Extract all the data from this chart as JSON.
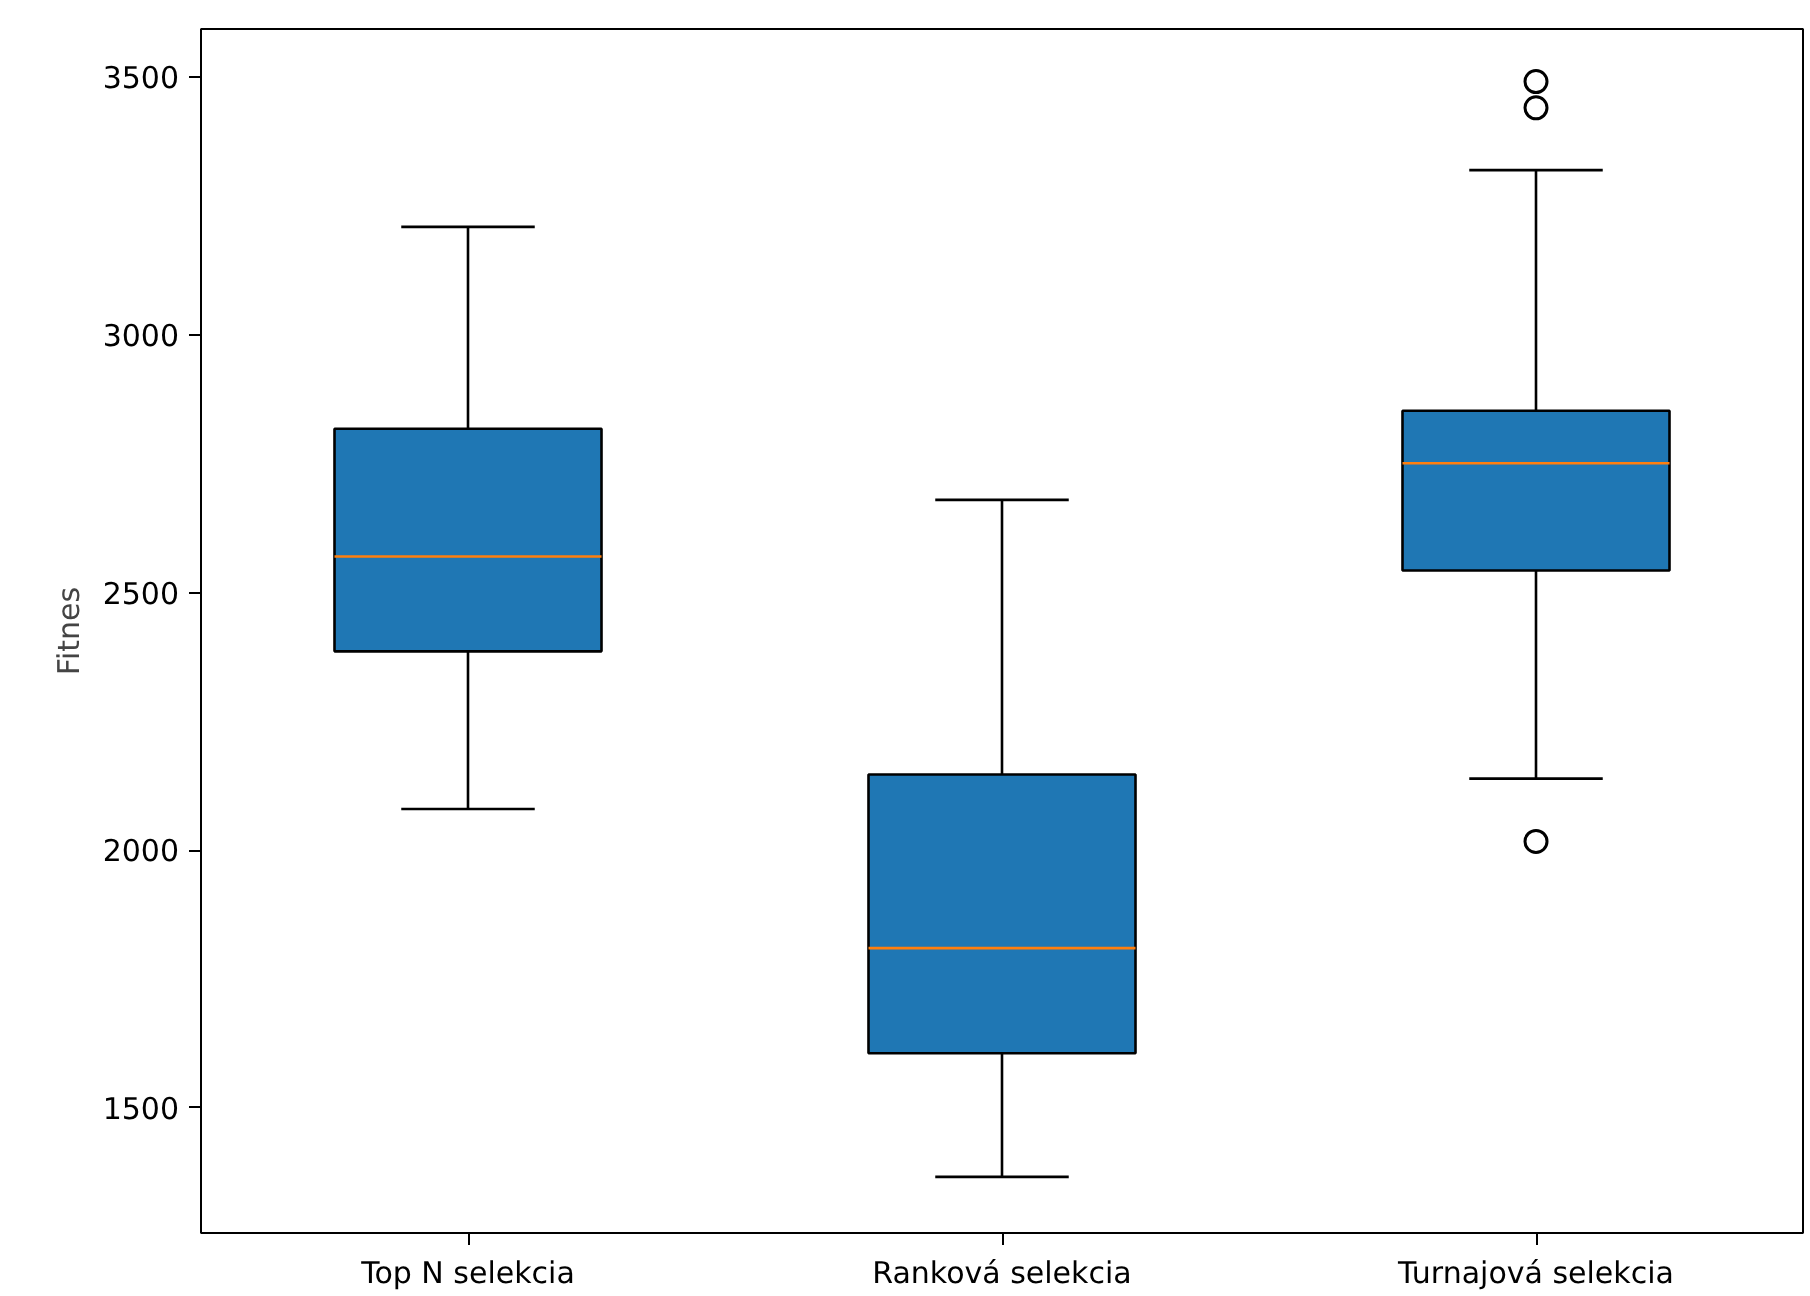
{
  "chart_data": {
    "type": "box",
    "ylabel": "Fitnes",
    "categories": [
      "Top N selekcia",
      "Ranková selekcia",
      "Turnajová selekcia"
    ],
    "series": [
      {
        "color": "#1f77b4",
        "boxes": [
          {
            "low": 2080,
            "q1": 2386,
            "median": 2570,
            "q3": 2818,
            "high": 3210
          },
          {
            "low": 1366,
            "q1": 1606,
            "median": 1810,
            "q3": 2147,
            "high": 2680
          },
          {
            "low": 2139,
            "q1": 2543,
            "median": 2751,
            "q3": 2853,
            "high": 3320,
            "outliers": [
              3492,
              3441,
              2017
            ]
          }
        ]
      }
    ],
    "ylim": [
      1257,
      3594
    ],
    "yticks": [
      1500,
      2000,
      2500,
      3000,
      3500
    ]
  }
}
